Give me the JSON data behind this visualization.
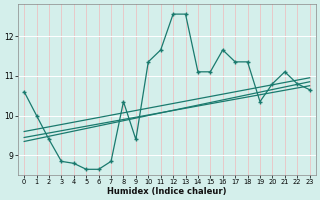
{
  "xlabel": "Humidex (Indice chaleur)",
  "bg_color": "#d4efeb",
  "grid_color_h": "#ffffff",
  "grid_color_v": "#e8c8c8",
  "line_color": "#1a7a6e",
  "xlim": [
    -0.5,
    23.5
  ],
  "ylim": [
    8.5,
    12.8
  ],
  "yticks": [
    9,
    10,
    11,
    12
  ],
  "xticks": [
    0,
    1,
    2,
    3,
    4,
    5,
    6,
    7,
    8,
    9,
    10,
    11,
    12,
    13,
    14,
    15,
    16,
    17,
    18,
    19,
    20,
    21,
    22,
    23
  ],
  "main_x": [
    0,
    1,
    2,
    3,
    4,
    5,
    6,
    7,
    8,
    9,
    10,
    11,
    12,
    13,
    14,
    15,
    16,
    17,
    18,
    19,
    20,
    21,
    22,
    23
  ],
  "main_y": [
    10.6,
    10.0,
    9.4,
    8.85,
    8.8,
    8.65,
    8.65,
    8.85,
    10.35,
    9.4,
    11.35,
    11.65,
    12.55,
    12.55,
    11.1,
    11.1,
    11.65,
    11.35,
    11.35,
    10.35,
    10.8,
    11.1,
    10.8,
    10.65
  ],
  "trend1_x": [
    0,
    23
  ],
  "trend1_y": [
    9.6,
    10.95
  ],
  "trend2_x": [
    0,
    23
  ],
  "trend2_y": [
    9.45,
    10.75
  ],
  "trend3_x": [
    0,
    23
  ],
  "trend3_y": [
    9.35,
    10.85
  ]
}
